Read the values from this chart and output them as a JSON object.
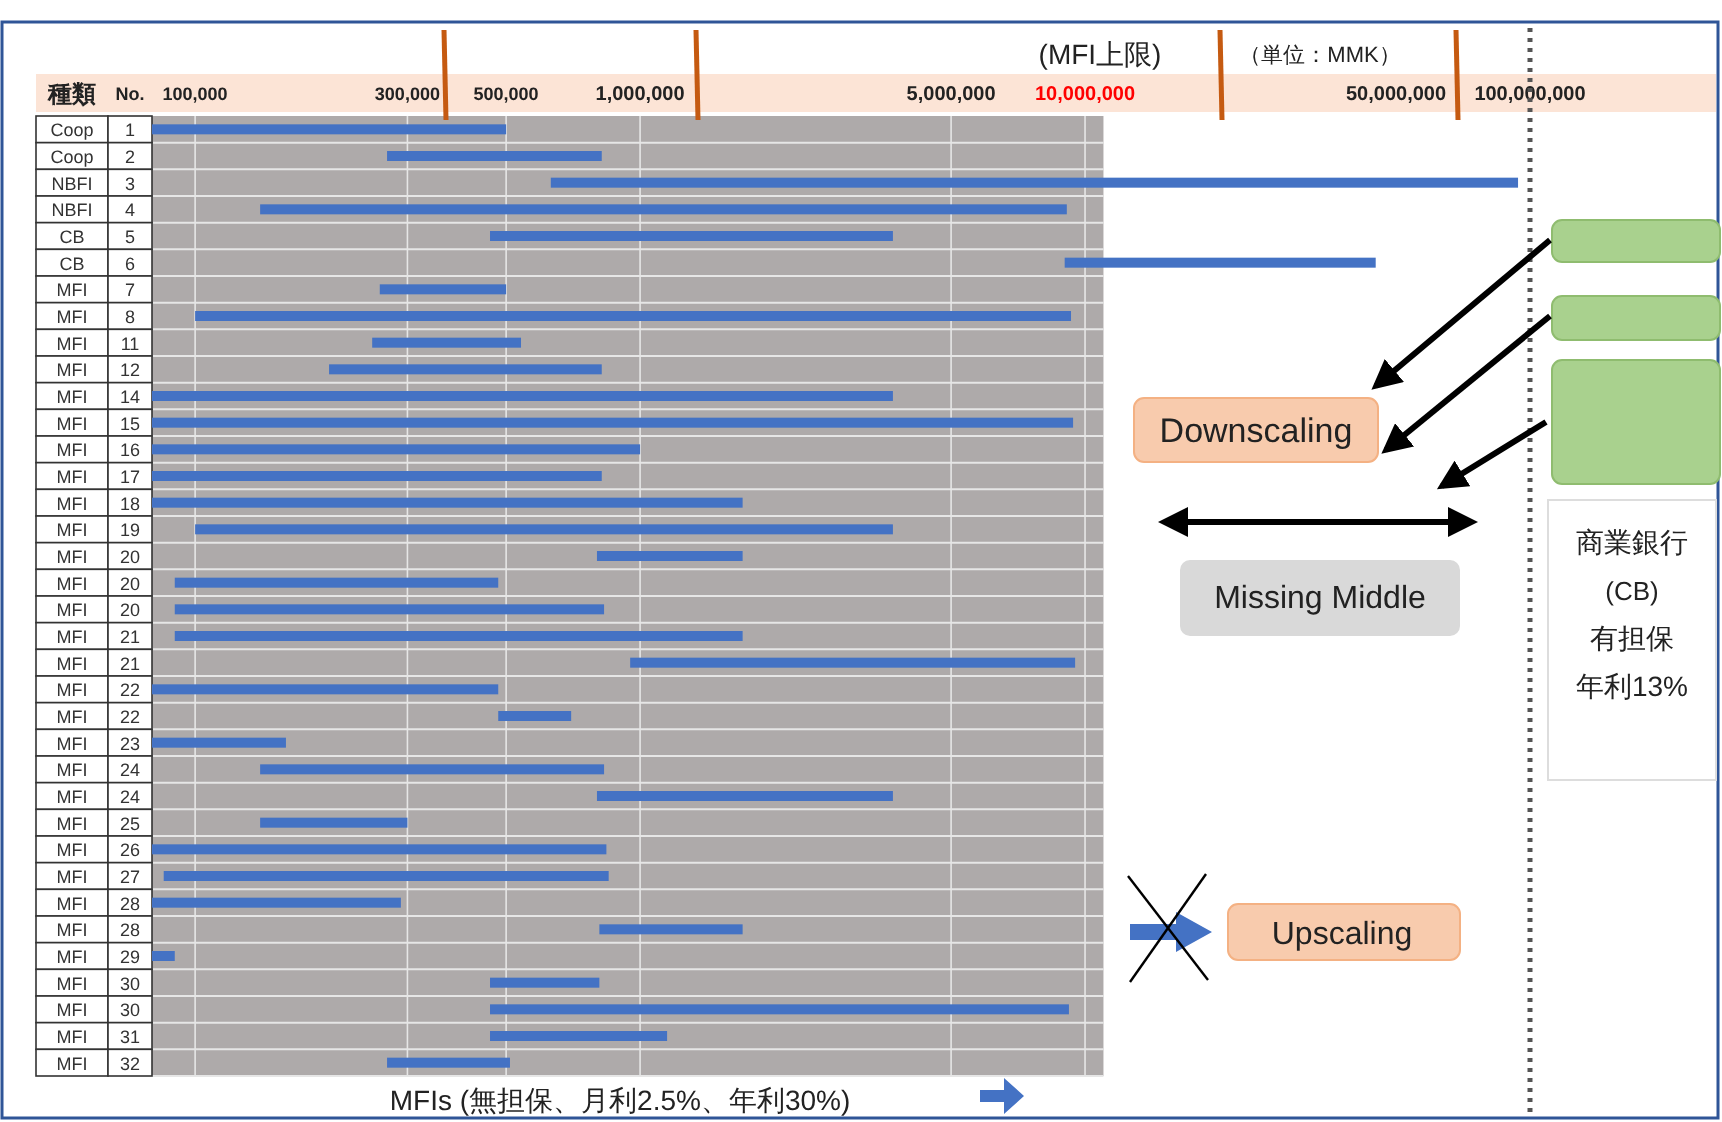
{
  "chart_data": {
    "type": "bar",
    "orientation": "horizontal",
    "log": "x",
    "grid": true,
    "categories": [
      "Coop 1",
      "Coop 2",
      "NBFI 3",
      "NBFI 4",
      "CB 5",
      "CB 6",
      "MFI 7",
      "MFI 8",
      "MFI 11",
      "MFI 12",
      "MFI 14",
      "MFI 15",
      "MFI 16",
      "MFI 17",
      "MFI 18",
      "MFI 19",
      "MFI 20",
      "MFI 20",
      "MFI 20",
      "MFI 21",
      "MFI 21",
      "MFI 22",
      "MFI 22",
      "MFI 23",
      "MFI 24",
      "MFI 24",
      "MFI 25",
      "MFI 26",
      "MFI 27",
      "MFI 28",
      "MFI 28",
      "MFI 29",
      "MFI 30",
      "MFI 30",
      "MFI 31",
      "MFI 32"
    ],
    "base": [
      80000,
      270000,
      630000,
      140000,
      460000,
      9000000,
      260000,
      100000,
      250000,
      200000,
      80000,
      80000,
      80000,
      80000,
      80000,
      100000,
      800000,
      90000,
      90000,
      90000,
      950000,
      80000,
      480000,
      80000,
      140000,
      800000,
      140000,
      80000,
      85000,
      80000,
      810000,
      80000,
      460000,
      460000,
      460000,
      270000
    ],
    "values": [
      420000,
      550000,
      93370000,
      8960000,
      3240000,
      36000000,
      240000,
      9200000,
      290000,
      620000,
      3620000,
      9320000,
      920000,
      740000,
      1620000,
      3600000,
      900000,
      390000,
      740000,
      1610000,
      8550000,
      400000,
      220000,
      80000,
      690000,
      2900000,
      160000,
      760000,
      765000,
      210000,
      890000,
      10000,
      350000,
      8740000,
      690000,
      240000
    ],
    "color": "#4472c4",
    "xlim": [
      80000,
      100000000
    ],
    "xticks": [
      {
        "value": 100000,
        "label": "100,000"
      },
      {
        "value": 300000,
        "label": "300,000"
      },
      {
        "value": 500000,
        "label": "500,000"
      },
      {
        "value": 1000000,
        "label": "1,000,000"
      },
      {
        "value": 5000000,
        "label": "5,000,000"
      },
      {
        "value": 10000000,
        "label": "10,000,000"
      },
      {
        "value": 50000000,
        "label": "50,000,000"
      },
      {
        "value": 100000000,
        "label": "100,000,000"
      }
    ],
    "bands": [
      {
        "axis": "x",
        "from": 80000,
        "to": 11000000,
        "color": "#aeaaaa"
      }
    ],
    "ref_lines": [
      {
        "axis": "x",
        "value": 100000000,
        "line_style": "dotted",
        "color": "#555555"
      }
    ],
    "annotations": [
      "種類",
      "No.",
      "(MFI上限)",
      "（単位：MMK）",
      "Downscaling",
      "Missing Middle",
      "商業銀行",
      "(CB)",
      "有担保",
      "年利13%",
      "Upscaling",
      "MFIs (無担保、月利2.5%、年利30%)"
    ]
  }
}
